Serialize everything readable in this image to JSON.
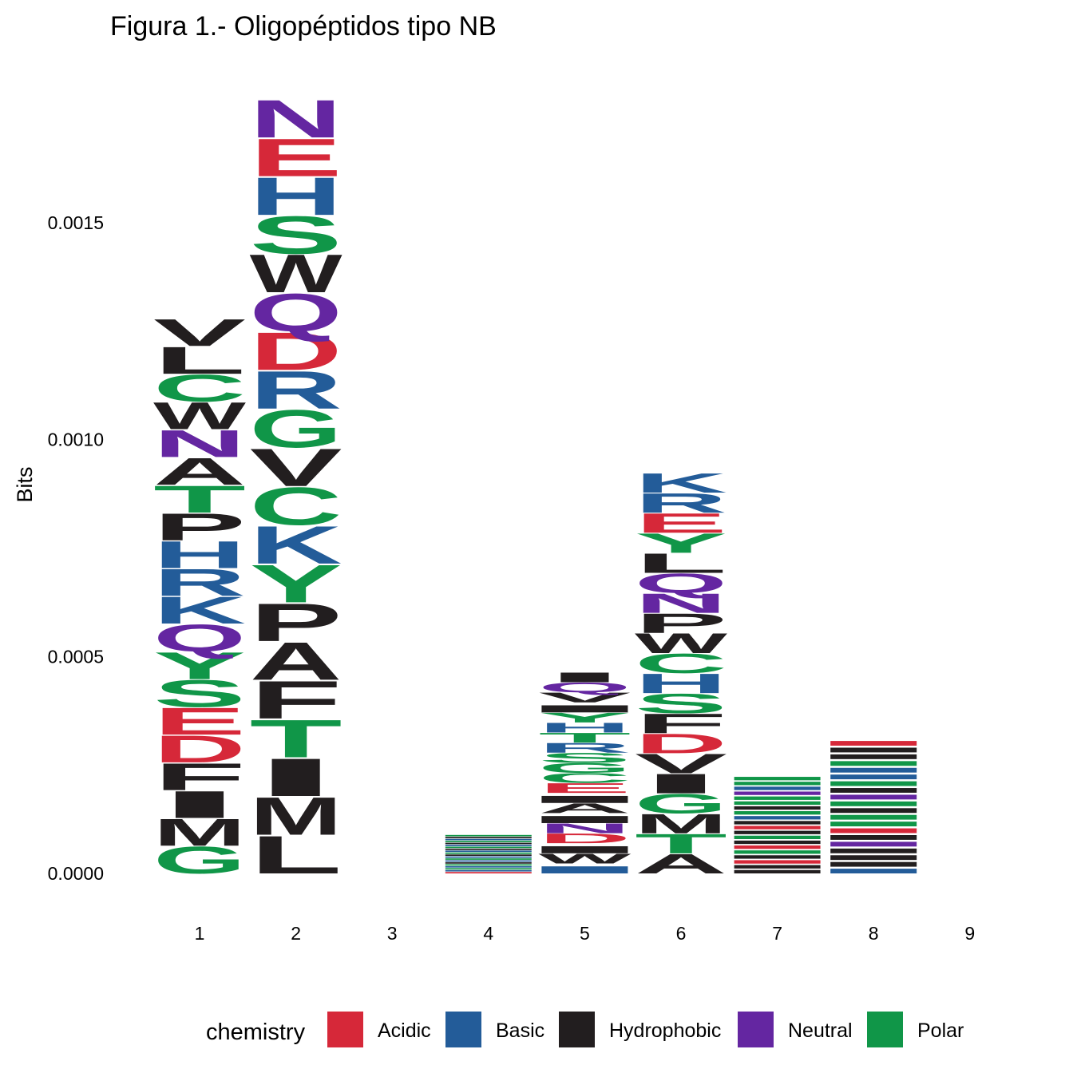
{
  "chart_data": {
    "type": "sequence-logo",
    "title": "Figura 1.- Oligopéptidos tipo NB",
    "xlabel": "",
    "ylabel": "Bits",
    "ylim": [
      0,
      0.0018
    ],
    "yticks": [
      "0.0000",
      "0.0005",
      "0.0010",
      "0.0015"
    ],
    "positions": [
      "1",
      "2",
      "3",
      "4",
      "5",
      "6",
      "7",
      "8",
      "9"
    ],
    "grid": false,
    "legend": {
      "title": "chemistry",
      "placement": "bottom",
      "entries": [
        {
          "label": "Acidic",
          "color": "#D62839"
        },
        {
          "label": "Basic",
          "color": "#235C99"
        },
        {
          "label": "Hydrophobic",
          "color": "#221E1F"
        },
        {
          "label": "Neutral",
          "color": "#6426A1"
        },
        {
          "label": "Polar",
          "color": "#109648"
        }
      ]
    },
    "stacks": [
      {
        "position": "1",
        "letters": [
          {
            "aa": "G",
            "chem": "Polar",
            "bits": 6.4e-05
          },
          {
            "aa": "M",
            "chem": "Hydrophobic",
            "bits": 6.4e-05
          },
          {
            "aa": "I",
            "chem": "Hydrophobic",
            "bits": 6.4e-05
          },
          {
            "aa": "F",
            "chem": "Hydrophobic",
            "bits": 6.4e-05
          },
          {
            "aa": "D",
            "chem": "Acidic",
            "bits": 6.4e-05
          },
          {
            "aa": "E",
            "chem": "Acidic",
            "bits": 6.4e-05
          },
          {
            "aa": "S",
            "chem": "Polar",
            "bits": 6.4e-05
          },
          {
            "aa": "Y",
            "chem": "Polar",
            "bits": 6.4e-05
          },
          {
            "aa": "Q",
            "chem": "Neutral",
            "bits": 6.4e-05
          },
          {
            "aa": "K",
            "chem": "Basic",
            "bits": 6.4e-05
          },
          {
            "aa": "R",
            "chem": "Basic",
            "bits": 6.4e-05
          },
          {
            "aa": "H",
            "chem": "Basic",
            "bits": 6.4e-05
          },
          {
            "aa": "P",
            "chem": "Hydrophobic",
            "bits": 6.4e-05
          },
          {
            "aa": "T",
            "chem": "Polar",
            "bits": 6.4e-05
          },
          {
            "aa": "A",
            "chem": "Hydrophobic",
            "bits": 6.4e-05
          },
          {
            "aa": "N",
            "chem": "Neutral",
            "bits": 6.4e-05
          },
          {
            "aa": "W",
            "chem": "Hydrophobic",
            "bits": 6.4e-05
          },
          {
            "aa": "C",
            "chem": "Polar",
            "bits": 6.4e-05
          },
          {
            "aa": "L",
            "chem": "Hydrophobic",
            "bits": 6.4e-05
          },
          {
            "aa": "V",
            "chem": "Hydrophobic",
            "bits": 6.4e-05
          }
        ]
      },
      {
        "position": "2",
        "letters": [
          {
            "aa": "L",
            "chem": "Hydrophobic",
            "bits": 8.93e-05
          },
          {
            "aa": "M",
            "chem": "Hydrophobic",
            "bits": 8.93e-05
          },
          {
            "aa": "I",
            "chem": "Hydrophobic",
            "bits": 8.93e-05
          },
          {
            "aa": "T",
            "chem": "Polar",
            "bits": 8.93e-05
          },
          {
            "aa": "F",
            "chem": "Hydrophobic",
            "bits": 8.93e-05
          },
          {
            "aa": "A",
            "chem": "Hydrophobic",
            "bits": 8.93e-05
          },
          {
            "aa": "P",
            "chem": "Hydrophobic",
            "bits": 8.93e-05
          },
          {
            "aa": "Y",
            "chem": "Polar",
            "bits": 8.93e-05
          },
          {
            "aa": "K",
            "chem": "Basic",
            "bits": 8.93e-05
          },
          {
            "aa": "C",
            "chem": "Polar",
            "bits": 8.93e-05
          },
          {
            "aa": "V",
            "chem": "Hydrophobic",
            "bits": 8.93e-05
          },
          {
            "aa": "G",
            "chem": "Polar",
            "bits": 8.93e-05
          },
          {
            "aa": "R",
            "chem": "Basic",
            "bits": 8.93e-05
          },
          {
            "aa": "D",
            "chem": "Acidic",
            "bits": 8.93e-05
          },
          {
            "aa": "Q",
            "chem": "Neutral",
            "bits": 8.93e-05
          },
          {
            "aa": "W",
            "chem": "Hydrophobic",
            "bits": 8.93e-05
          },
          {
            "aa": "S",
            "chem": "Polar",
            "bits": 8.93e-05
          },
          {
            "aa": "H",
            "chem": "Basic",
            "bits": 8.93e-05
          },
          {
            "aa": "E",
            "chem": "Acidic",
            "bits": 8.93e-05
          },
          {
            "aa": "N",
            "chem": "Neutral",
            "bits": 8.93e-05
          }
        ]
      },
      {
        "position": "3",
        "letters": []
      },
      {
        "position": "4",
        "letters": [
          {
            "aa": "",
            "chem": "Acidic",
            "bits": 4.5e-06
          },
          {
            "aa": "",
            "chem": "Basic",
            "bits": 4.5e-06
          },
          {
            "aa": "",
            "chem": "Polar",
            "bits": 4.5e-06
          },
          {
            "aa": "",
            "chem": "Basic",
            "bits": 4.5e-06
          },
          {
            "aa": "",
            "chem": "Polar",
            "bits": 4.5e-06
          },
          {
            "aa": "",
            "chem": "Hydrophobic",
            "bits": 4.5e-06
          },
          {
            "aa": "",
            "chem": "Basic",
            "bits": 4.5e-06
          },
          {
            "aa": "",
            "chem": "Polar",
            "bits": 4.5e-06
          },
          {
            "aa": "",
            "chem": "Basic",
            "bits": 4.5e-06
          },
          {
            "aa": "",
            "chem": "Hydrophobic",
            "bits": 4.5e-06
          },
          {
            "aa": "",
            "chem": "Polar",
            "bits": 4.5e-06
          },
          {
            "aa": "",
            "chem": "Basic",
            "bits": 4.5e-06
          },
          {
            "aa": "",
            "chem": "Hydrophobic",
            "bits": 4.5e-06
          },
          {
            "aa": "",
            "chem": "Polar",
            "bits": 4.5e-06
          },
          {
            "aa": "",
            "chem": "Basic",
            "bits": 4.5e-06
          },
          {
            "aa": "",
            "chem": "Hydrophobic",
            "bits": 4.5e-06
          },
          {
            "aa": "",
            "chem": "Polar",
            "bits": 4.5e-06
          },
          {
            "aa": "",
            "chem": "Basic",
            "bits": 4.5e-06
          },
          {
            "aa": "",
            "chem": "Hydrophobic",
            "bits": 4.5e-06
          },
          {
            "aa": "",
            "chem": "Polar",
            "bits": 4.5e-06
          }
        ]
      },
      {
        "position": "5",
        "letters": [
          {
            "aa": "",
            "chem": "Basic",
            "bits": 2.32e-05
          },
          {
            "aa": "W",
            "chem": "Hydrophobic",
            "bits": 2.32e-05
          },
          {
            "aa": "",
            "chem": "Hydrophobic",
            "bits": 2.32e-05
          },
          {
            "aa": "D",
            "chem": "Acidic",
            "bits": 2.32e-05
          },
          {
            "aa": "N",
            "chem": "Neutral",
            "bits": 2.32e-05
          },
          {
            "aa": "",
            "chem": "Hydrophobic",
            "bits": 2.32e-05
          },
          {
            "aa": "A",
            "chem": "Hydrophobic",
            "bits": 2.32e-05
          },
          {
            "aa": "",
            "chem": "Hydrophobic",
            "bits": 2.32e-05
          },
          {
            "aa": "E",
            "chem": "Acidic",
            "bits": 2.32e-05
          },
          {
            "aa": "C",
            "chem": "Polar",
            "bits": 2.32e-05
          },
          {
            "aa": "G",
            "chem": "Polar",
            "bits": 2.32e-05
          },
          {
            "aa": "S",
            "chem": "Polar",
            "bits": 2.32e-05
          },
          {
            "aa": "R",
            "chem": "Basic",
            "bits": 2.32e-05
          },
          {
            "aa": "T",
            "chem": "Polar",
            "bits": 2.32e-05
          },
          {
            "aa": "H",
            "chem": "Basic",
            "bits": 2.32e-05
          },
          {
            "aa": "Y",
            "chem": "Polar",
            "bits": 2.32e-05
          },
          {
            "aa": "",
            "chem": "Hydrophobic",
            "bits": 2.32e-05
          },
          {
            "aa": "V",
            "chem": "Hydrophobic",
            "bits": 2.32e-05
          },
          {
            "aa": "Q",
            "chem": "Neutral",
            "bits": 2.32e-05
          },
          {
            "aa": "I",
            "chem": "Hydrophobic",
            "bits": 2.32e-05
          }
        ]
      },
      {
        "position": "6",
        "letters": [
          {
            "aa": "A",
            "chem": "Hydrophobic",
            "bits": 4.62e-05
          },
          {
            "aa": "T",
            "chem": "Polar",
            "bits": 4.62e-05
          },
          {
            "aa": "M",
            "chem": "Hydrophobic",
            "bits": 4.62e-05
          },
          {
            "aa": "G",
            "chem": "Polar",
            "bits": 4.62e-05
          },
          {
            "aa": "I",
            "chem": "Hydrophobic",
            "bits": 4.62e-05
          },
          {
            "aa": "V",
            "chem": "Hydrophobic",
            "bits": 4.62e-05
          },
          {
            "aa": "D",
            "chem": "Acidic",
            "bits": 4.62e-05
          },
          {
            "aa": "F",
            "chem": "Hydrophobic",
            "bits": 4.62e-05
          },
          {
            "aa": "S",
            "chem": "Polar",
            "bits": 4.62e-05
          },
          {
            "aa": "H",
            "chem": "Basic",
            "bits": 4.62e-05
          },
          {
            "aa": "C",
            "chem": "Polar",
            "bits": 4.62e-05
          },
          {
            "aa": "W",
            "chem": "Hydrophobic",
            "bits": 4.62e-05
          },
          {
            "aa": "P",
            "chem": "Hydrophobic",
            "bits": 4.62e-05
          },
          {
            "aa": "N",
            "chem": "Neutral",
            "bits": 4.62e-05
          },
          {
            "aa": "Q",
            "chem": "Neutral",
            "bits": 4.62e-05
          },
          {
            "aa": "L",
            "chem": "Hydrophobic",
            "bits": 4.62e-05
          },
          {
            "aa": "Y",
            "chem": "Polar",
            "bits": 4.62e-05
          },
          {
            "aa": "E",
            "chem": "Acidic",
            "bits": 4.62e-05
          },
          {
            "aa": "R",
            "chem": "Basic",
            "bits": 4.62e-05
          },
          {
            "aa": "K",
            "chem": "Basic",
            "bits": 4.62e-05
          }
        ]
      },
      {
        "position": "7",
        "letters": [
          {
            "aa": "",
            "chem": "Hydrophobic",
            "bits": 1.13e-05
          },
          {
            "aa": "",
            "chem": "Hydrophobic",
            "bits": 1.13e-05
          },
          {
            "aa": "",
            "chem": "Acidic",
            "bits": 1.13e-05
          },
          {
            "aa": "",
            "chem": "Hydrophobic",
            "bits": 1.13e-05
          },
          {
            "aa": "",
            "chem": "Polar",
            "bits": 1.13e-05
          },
          {
            "aa": "",
            "chem": "Acidic",
            "bits": 1.13e-05
          },
          {
            "aa": "",
            "chem": "Hydrophobic",
            "bits": 1.13e-05
          },
          {
            "aa": "",
            "chem": "Polar",
            "bits": 1.13e-05
          },
          {
            "aa": "",
            "chem": "Hydrophobic",
            "bits": 1.13e-05
          },
          {
            "aa": "",
            "chem": "Acidic",
            "bits": 1.13e-05
          },
          {
            "aa": "",
            "chem": "Hydrophobic",
            "bits": 1.13e-05
          },
          {
            "aa": "",
            "chem": "Basic",
            "bits": 1.13e-05
          },
          {
            "aa": "",
            "chem": "Polar",
            "bits": 1.13e-05
          },
          {
            "aa": "",
            "chem": "Hydrophobic",
            "bits": 1.13e-05
          },
          {
            "aa": "",
            "chem": "Polar",
            "bits": 1.13e-05
          },
          {
            "aa": "",
            "chem": "Polar",
            "bits": 1.13e-05
          },
          {
            "aa": "",
            "chem": "Neutral",
            "bits": 1.13e-05
          },
          {
            "aa": "",
            "chem": "Basic",
            "bits": 1.13e-05
          },
          {
            "aa": "",
            "chem": "Polar",
            "bits": 1.13e-05
          },
          {
            "aa": "",
            "chem": "Polar",
            "bits": 1.13e-05
          }
        ]
      },
      {
        "position": "8",
        "letters": [
          {
            "aa": "",
            "chem": "Basic",
            "bits": 1.55e-05
          },
          {
            "aa": "",
            "chem": "Hydrophobic",
            "bits": 1.55e-05
          },
          {
            "aa": "",
            "chem": "Hydrophobic",
            "bits": 1.55e-05
          },
          {
            "aa": "",
            "chem": "Hydrophobic",
            "bits": 1.55e-05
          },
          {
            "aa": "",
            "chem": "Neutral",
            "bits": 1.55e-05
          },
          {
            "aa": "",
            "chem": "Hydrophobic",
            "bits": 1.55e-05
          },
          {
            "aa": "",
            "chem": "Acidic",
            "bits": 1.55e-05
          },
          {
            "aa": "",
            "chem": "Polar",
            "bits": 1.55e-05
          },
          {
            "aa": "",
            "chem": "Polar",
            "bits": 1.55e-05
          },
          {
            "aa": "",
            "chem": "Hydrophobic",
            "bits": 1.55e-05
          },
          {
            "aa": "",
            "chem": "Polar",
            "bits": 1.55e-05
          },
          {
            "aa": "",
            "chem": "Neutral",
            "bits": 1.55e-05
          },
          {
            "aa": "",
            "chem": "Hydrophobic",
            "bits": 1.55e-05
          },
          {
            "aa": "",
            "chem": "Polar",
            "bits": 1.55e-05
          },
          {
            "aa": "",
            "chem": "Basic",
            "bits": 1.55e-05
          },
          {
            "aa": "",
            "chem": "Basic",
            "bits": 1.55e-05
          },
          {
            "aa": "",
            "chem": "Polar",
            "bits": 1.55e-05
          },
          {
            "aa": "",
            "chem": "Hydrophobic",
            "bits": 1.55e-05
          },
          {
            "aa": "",
            "chem": "Hydrophobic",
            "bits": 1.55e-05
          },
          {
            "aa": "",
            "chem": "Acidic",
            "bits": 1.55e-05
          }
        ]
      },
      {
        "position": "9",
        "letters": []
      }
    ]
  }
}
